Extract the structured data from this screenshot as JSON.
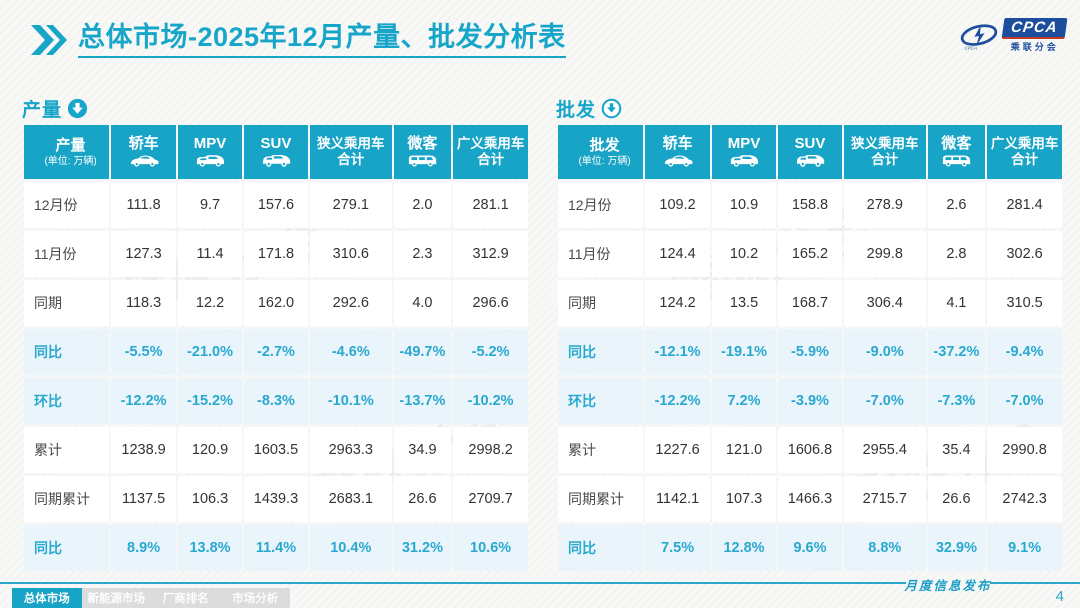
{
  "slide": {
    "title": "总体市场-2025年12月产量、批发分析表",
    "footer_label": "月度信息发布",
    "page_number": "4"
  },
  "logo": {
    "text": "CPCA",
    "subtext": "乘联分会"
  },
  "watermark": "乘联分会",
  "colors": {
    "accent": "#18a4c6",
    "percent_text": "#29a8d0",
    "percent_row_bg": "#e9f5fb",
    "logo_blue": "#1c4e9d"
  },
  "tabs": [
    {
      "label": "总体市场",
      "active": true
    },
    {
      "label": "新能源市场",
      "active": false
    },
    {
      "label": "厂商排名",
      "active": false
    },
    {
      "label": "市场分析",
      "active": false
    }
  ],
  "tables": [
    {
      "id": "production",
      "section_label": "产量",
      "corner_title": "产量",
      "corner_unit": "(单位: 万辆)",
      "arrow_style": "solid",
      "columns": [
        {
          "label": "轿车",
          "icon": "sedan-icon"
        },
        {
          "label": "MPV",
          "icon": "mpv-icon"
        },
        {
          "label": "SUV",
          "icon": "suv-icon"
        },
        {
          "label": "狭义乘用车\n合计",
          "icon": null
        },
        {
          "label": "微客",
          "icon": "microvan-icon"
        },
        {
          "label": "广义乘用车\n合计",
          "icon": null
        }
      ],
      "rows": [
        {
          "label": "12月份",
          "type": "data",
          "values": [
            "111.8",
            "9.7",
            "157.6",
            "279.1",
            "2.0",
            "281.1"
          ]
        },
        {
          "label": "11月份",
          "type": "data",
          "values": [
            "127.3",
            "11.4",
            "171.8",
            "310.6",
            "2.3",
            "312.9"
          ]
        },
        {
          "label": "同期",
          "type": "data",
          "values": [
            "118.3",
            "12.2",
            "162.0",
            "292.6",
            "4.0",
            "296.6"
          ]
        },
        {
          "label": "同比",
          "type": "percent",
          "values": [
            "-5.5%",
            "-21.0%",
            "-2.7%",
            "-4.6%",
            "-49.7%",
            "-5.2%"
          ]
        },
        {
          "label": "环比",
          "type": "percent",
          "values": [
            "-12.2%",
            "-15.2%",
            "-8.3%",
            "-10.1%",
            "-13.7%",
            "-10.2%"
          ]
        },
        {
          "label": "累计",
          "type": "data",
          "values": [
            "1238.9",
            "120.9",
            "1603.5",
            "2963.3",
            "34.9",
            "2998.2"
          ]
        },
        {
          "label": "同期累计",
          "type": "data",
          "values": [
            "1137.5",
            "106.3",
            "1439.3",
            "2683.1",
            "26.6",
            "2709.7"
          ]
        },
        {
          "label": "同比",
          "type": "percent",
          "values": [
            "8.9%",
            "13.8%",
            "11.4%",
            "10.4%",
            "31.2%",
            "10.6%"
          ]
        }
      ]
    },
    {
      "id": "wholesale",
      "section_label": "批发",
      "corner_title": "批发",
      "corner_unit": "(单位: 万辆)",
      "arrow_style": "outline",
      "columns": [
        {
          "label": "轿车",
          "icon": "sedan-icon"
        },
        {
          "label": "MPV",
          "icon": "mpv-icon"
        },
        {
          "label": "SUV",
          "icon": "suv-icon"
        },
        {
          "label": "狭义乘用车\n合计",
          "icon": null
        },
        {
          "label": "微客",
          "icon": "microvan-icon"
        },
        {
          "label": "广义乘用车\n合计",
          "icon": null
        }
      ],
      "rows": [
        {
          "label": "12月份",
          "type": "data",
          "values": [
            "109.2",
            "10.9",
            "158.8",
            "278.9",
            "2.6",
            "281.4"
          ]
        },
        {
          "label": "11月份",
          "type": "data",
          "values": [
            "124.4",
            "10.2",
            "165.2",
            "299.8",
            "2.8",
            "302.6"
          ]
        },
        {
          "label": "同期",
          "type": "data",
          "values": [
            "124.2",
            "13.5",
            "168.7",
            "306.4",
            "4.1",
            "310.5"
          ]
        },
        {
          "label": "同比",
          "type": "percent",
          "values": [
            "-12.1%",
            "-19.1%",
            "-5.9%",
            "-9.0%",
            "-37.2%",
            "-9.4%"
          ]
        },
        {
          "label": "环比",
          "type": "percent",
          "values": [
            "-12.2%",
            "7.2%",
            "-3.9%",
            "-7.0%",
            "-7.3%",
            "-7.0%"
          ]
        },
        {
          "label": "累计",
          "type": "data",
          "values": [
            "1227.6",
            "121.0",
            "1606.8",
            "2955.4",
            "35.4",
            "2990.8"
          ]
        },
        {
          "label": "同期累计",
          "type": "data",
          "values": [
            "1142.1",
            "107.3",
            "1466.3",
            "2715.7",
            "26.6",
            "2742.3"
          ]
        },
        {
          "label": "同比",
          "type": "percent",
          "values": [
            "7.5%",
            "12.8%",
            "9.6%",
            "8.8%",
            "32.9%",
            "9.1%"
          ]
        }
      ]
    }
  ]
}
